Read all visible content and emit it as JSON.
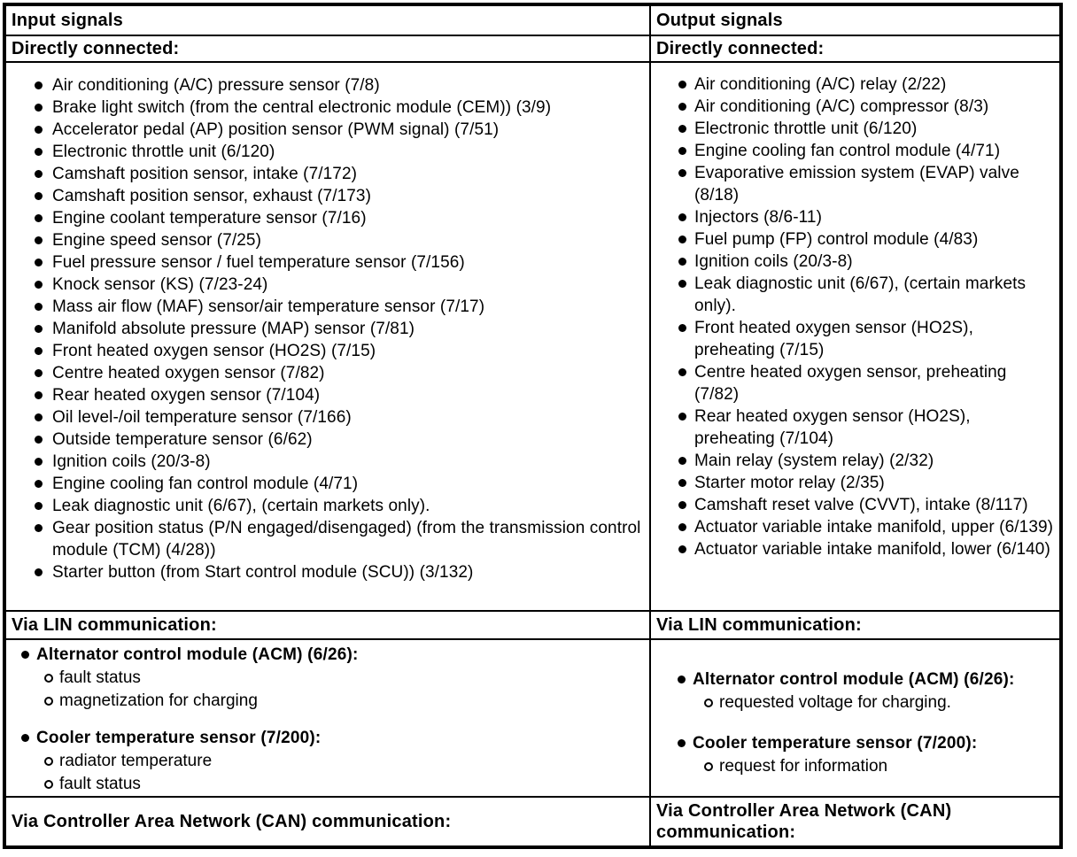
{
  "palette": {
    "border": "#000000",
    "text": "#000000",
    "background": "#ffffff"
  },
  "columns": [
    {
      "header": "Input signals",
      "direct_label": "Directly connected:",
      "direct_items": [
        "Air conditioning (A/C) pressure sensor (7/8)",
        "Brake light switch (from the central electronic module (CEM)) (3/9)",
        "Accelerator pedal (AP) position sensor (PWM signal) (7/51)",
        "Electronic throttle unit (6/120)",
        "Camshaft position sensor, intake (7/172)",
        "Camshaft position sensor, exhaust (7/173)",
        "Engine coolant temperature sensor (7/16)",
        "Engine speed sensor (7/25)",
        "Fuel pressure sensor / fuel temperature sensor (7/156)",
        "Knock sensor (KS) (7/23-24)",
        "Mass air flow (MAF) sensor/air temperature sensor (7/17)",
        "Manifold absolute pressure (MAP) sensor (7/81)",
        "Front heated oxygen sensor (HO2S) (7/15)",
        "Centre heated oxygen sensor (7/82)",
        "Rear heated oxygen sensor (7/104)",
        "Oil level-/oil temperature sensor (7/166)",
        "Outside temperature sensor (6/62)",
        "Ignition coils (20/3-8)",
        "Engine cooling fan control module (4/71)",
        "Leak diagnostic unit (6/67), (certain markets only).",
        "Gear position status (P/N engaged/disengaged) (from the transmission control module (TCM) (4/28))",
        "Starter button (from Start control module (SCU)) (3/132)"
      ],
      "lin_label": "Via LIN communication:",
      "lin_groups": [
        {
          "title": "Alternator control module (ACM) (6/26):",
          "items": [
            "fault status",
            "magnetization for charging"
          ]
        },
        {
          "title": "Cooler temperature sensor (7/200):",
          "items": [
            "radiator temperature",
            "fault status"
          ]
        }
      ],
      "can_label": "Via Controller Area Network (CAN) communication:"
    },
    {
      "header": "Output signals",
      "direct_label": "Directly connected:",
      "direct_items": [
        "Air conditioning (A/C) relay (2/22)",
        "Air conditioning (A/C) compressor (8/3)",
        "Electronic throttle unit (6/120)",
        "Engine cooling fan control module (4/71)",
        "Evaporative emission system (EVAP) valve (8/18)",
        "Injectors (8/6-11)",
        "Fuel pump (FP) control module (4/83)",
        "Ignition coils (20/3-8)",
        "Leak diagnostic unit (6/67), (certain markets only).",
        "Front heated oxygen sensor (HO2S), preheating (7/15)",
        "Centre heated oxygen sensor, preheating (7/82)",
        "Rear heated oxygen sensor (HO2S), preheating (7/104)",
        "Main relay (system relay) (2/32)",
        "Starter motor relay (2/35)",
        "Camshaft reset valve (CVVT), intake (8/117)",
        "Actuator variable intake manifold, upper (6/139)",
        "Actuator variable intake manifold, lower (6/140)"
      ],
      "lin_label": "Via LIN communication:",
      "lin_groups": [
        {
          "title": "Alternator control module (ACM) (6/26):",
          "items": [
            "requested voltage for charging."
          ]
        },
        {
          "title": "Cooler temperature sensor (7/200):",
          "items": [
            "request for information"
          ]
        }
      ],
      "can_label": "Via Controller Area Network (CAN) communication:"
    }
  ]
}
